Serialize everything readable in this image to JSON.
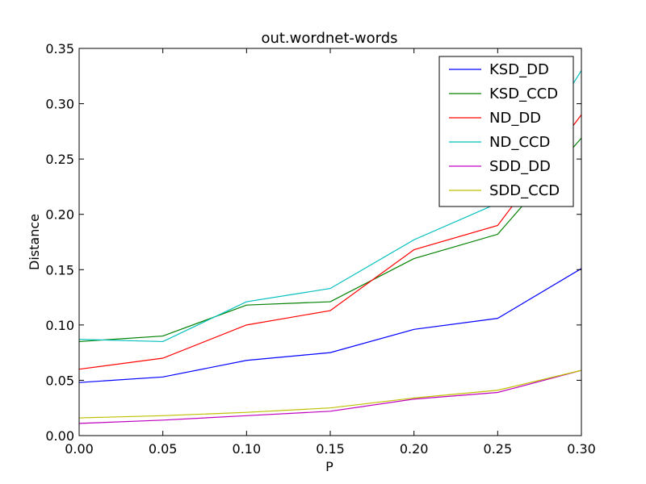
{
  "chart_data": {
    "type": "line",
    "title": "out.wordnet-words",
    "xlabel": "P",
    "ylabel": "Distance",
    "xlim": [
      0.0,
      0.3
    ],
    "ylim": [
      0.0,
      0.35
    ],
    "x_ticks": [
      "0.00",
      "0.05",
      "0.10",
      "0.15",
      "0.20",
      "0.25",
      "0.30"
    ],
    "y_ticks": [
      "0.00",
      "0.05",
      "0.10",
      "0.15",
      "0.20",
      "0.25",
      "0.30",
      "0.35"
    ],
    "grid": false,
    "legend_position": "top-right",
    "x": [
      0.0,
      0.05,
      0.1,
      0.15,
      0.2,
      0.25,
      0.3
    ],
    "series": [
      {
        "name": "KSD_DD",
        "color": "#0000ff",
        "values": [
          0.048,
          0.053,
          0.068,
          0.075,
          0.096,
          0.106,
          0.151
        ]
      },
      {
        "name": "KSD_CCD",
        "color": "#008000",
        "values": [
          0.085,
          0.09,
          0.118,
          0.121,
          0.16,
          0.182,
          0.269
        ]
      },
      {
        "name": "ND_DD",
        "color": "#ff0000",
        "values": [
          0.06,
          0.07,
          0.1,
          0.113,
          0.168,
          0.19,
          0.29
        ]
      },
      {
        "name": "ND_CCD",
        "color": "#00bfbf",
        "values": [
          0.087,
          0.085,
          0.121,
          0.133,
          0.177,
          0.21,
          0.33
        ]
      },
      {
        "name": "SDD_DD",
        "color": "#bf00bf",
        "values": [
          0.011,
          0.014,
          0.018,
          0.022,
          0.033,
          0.039,
          0.059
        ]
      },
      {
        "name": "SDD_CCD",
        "color": "#bfbf00",
        "values": [
          0.016,
          0.018,
          0.021,
          0.025,
          0.034,
          0.041,
          0.059
        ]
      }
    ]
  }
}
